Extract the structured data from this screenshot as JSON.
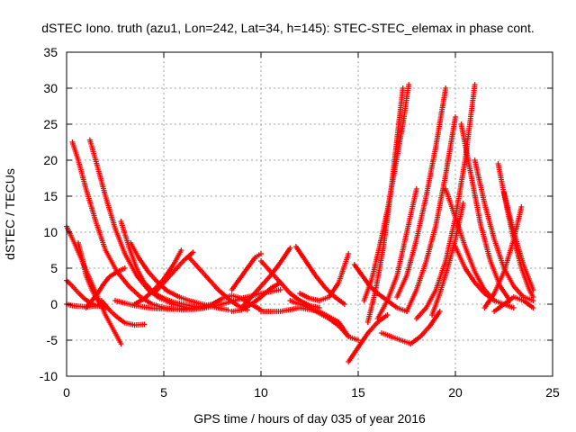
{
  "chart_data": {
    "type": "scatter",
    "title": "dSTEC Iono. truth (azu1, Lon=242, Lat=34, h=145): STEC-STEC_elemax in phase cont.",
    "xlabel": "GPS time / hours of day 035 of year 2016",
    "ylabel": "dSTEC  / TECUs",
    "xlim": [
      0,
      25
    ],
    "ylim": [
      -10,
      35
    ],
    "xticks": [
      0,
      5,
      10,
      15,
      20,
      25
    ],
    "yticks": [
      -10,
      -5,
      0,
      5,
      10,
      15,
      20,
      25,
      30,
      35
    ],
    "grid": true,
    "marker": "+",
    "color": "#ff0000",
    "series": [
      {
        "x": [
          0.0,
          0.4,
          0.8,
          1.2,
          1.6,
          2.0,
          2.4,
          2.8
        ],
        "y": [
          10.8,
          8.5,
          6.0,
          3.5,
          1.0,
          -1.5,
          -3.5,
          -5.5
        ]
      },
      {
        "x": [
          0.0,
          0.3,
          0.6,
          0.9,
          1.2,
          1.5,
          1.8
        ],
        "y": [
          3.3,
          2.5,
          1.6,
          0.8,
          0.2,
          -0.2,
          -0.3
        ]
      },
      {
        "x": [
          0.0,
          0.3,
          0.7,
          1.1,
          1.5,
          1.8
        ],
        "y": [
          0.0,
          -0.2,
          -0.3,
          -0.4,
          -0.2,
          0.0
        ]
      },
      {
        "x": [
          0.3,
          0.6,
          1.0,
          1.5,
          2.0,
          2.6,
          3.2,
          3.8,
          4.4,
          5.0
        ],
        "y": [
          22.5,
          20.0,
          16.0,
          11.5,
          7.5,
          4.5,
          2.5,
          1.0,
          0.0,
          -0.5
        ]
      },
      {
        "x": [
          1.2,
          1.6,
          2.0,
          2.5,
          3.0,
          3.6,
          4.2,
          4.8,
          5.5,
          6.2
        ],
        "y": [
          22.8,
          19.0,
          15.0,
          10.5,
          7.0,
          4.0,
          2.0,
          0.8,
          0.0,
          -0.5
        ]
      },
      {
        "x": [
          0.6,
          0.8,
          1.0,
          1.3,
          1.6,
          2.0
        ],
        "y": [
          8.5,
          6.5,
          4.0,
          2.0,
          0.5,
          -0.5
        ]
      },
      {
        "x": [
          1.0,
          1.3,
          1.6,
          1.9,
          2.2,
          2.6,
          3.0
        ],
        "y": [
          -0.5,
          0.5,
          1.5,
          2.8,
          3.8,
          4.5,
          5.0
        ]
      },
      {
        "x": [
          2.8,
          3.2,
          3.6,
          4.0,
          4.5,
          5.0,
          5.5,
          6.0,
          6.5,
          7.0
        ],
        "y": [
          11.5,
          8.0,
          5.0,
          3.0,
          1.5,
          0.8,
          0.3,
          0.0,
          -0.3,
          -0.5
        ]
      },
      {
        "x": [
          3.3,
          3.7,
          4.2,
          4.7,
          5.2,
          5.8,
          6.4,
          7.0,
          7.6,
          8.3
        ],
        "y": [
          8.5,
          6.5,
          4.5,
          3.0,
          1.8,
          1.0,
          0.4,
          0.0,
          -0.4,
          -0.8
        ]
      },
      {
        "x": [
          1.8,
          2.2,
          2.6,
          3.0,
          3.5,
          4.0
        ],
        "y": [
          0.5,
          -0.8,
          -1.8,
          -2.6,
          -2.9,
          -2.8
        ]
      },
      {
        "x": [
          3.5,
          4.0,
          4.5,
          5.0,
          5.5,
          5.9
        ],
        "y": [
          0.0,
          0.8,
          2.0,
          3.5,
          5.5,
          7.5
        ]
      },
      {
        "x": [
          2.5,
          3.5,
          4.5,
          5.5,
          6.5,
          7.5
        ],
        "y": [
          0.5,
          -0.2,
          -0.6,
          -0.7,
          -0.5,
          0.0
        ]
      },
      {
        "x": [
          4.5,
          5.0,
          5.5,
          6.0,
          6.5
        ],
        "y": [
          1.5,
          3.0,
          4.5,
          6.0,
          7.2
        ]
      },
      {
        "x": [
          6.3,
          6.8,
          7.3,
          7.8,
          8.3,
          8.8,
          9.3
        ],
        "y": [
          6.5,
          5.0,
          3.5,
          2.0,
          0.8,
          -0.2,
          -0.8
        ]
      },
      {
        "x": [
          5.0,
          6.0,
          7.0,
          8.0,
          9.0,
          10.0,
          11.0
        ],
        "y": [
          -0.5,
          -0.8,
          -0.6,
          0.0,
          0.8,
          1.5,
          2.0
        ]
      },
      {
        "x": [
          7.0,
          7.5,
          8.0,
          8.5,
          9.0,
          9.5,
          10.0
        ],
        "y": [
          -0.5,
          0.0,
          0.8,
          1.2,
          0.8,
          0.0,
          -0.8
        ]
      },
      {
        "x": [
          8.5,
          9.0,
          9.5,
          10.0,
          10.5,
          11.0
        ],
        "y": [
          -1.0,
          -0.8,
          0.0,
          1.0,
          2.2,
          3.0
        ]
      },
      {
        "x": [
          8.5,
          8.9,
          9.3,
          9.7,
          10.0
        ],
        "y": [
          2.0,
          3.5,
          5.0,
          6.5,
          7.0
        ]
      },
      {
        "x": [
          9.0,
          9.5,
          10.0,
          10.5,
          11.0,
          11.5
        ],
        "y": [
          -0.5,
          1.0,
          2.5,
          4.0,
          5.8,
          7.8
        ]
      },
      {
        "x": [
          10.0,
          10.5,
          11.0,
          11.5,
          12.0,
          12.5,
          13.0
        ],
        "y": [
          6.0,
          4.5,
          3.0,
          1.5,
          0.5,
          -0.2,
          -0.5
        ]
      },
      {
        "x": [
          11.8,
          12.3,
          12.8,
          13.3,
          13.8,
          14.3
        ],
        "y": [
          8.0,
          6.0,
          4.0,
          2.3,
          1.0,
          0.0
        ]
      },
      {
        "x": [
          10.0,
          11.0,
          12.0,
          13.0,
          14.0,
          14.5
        ],
        "y": [
          -1.0,
          -1.0,
          -0.5,
          -1.0,
          -2.5,
          -4.5
        ]
      },
      {
        "x": [
          12.0,
          12.5,
          13.0,
          13.5,
          14.0,
          14.5
        ],
        "y": [
          1.5,
          0.8,
          0.5,
          1.0,
          3.0,
          7.0
        ]
      },
      {
        "x": [
          11.5,
          12.5,
          13.5,
          14.0,
          14.5,
          15.0
        ],
        "y": [
          0.5,
          -0.5,
          -2.0,
          -3.0,
          -4.5,
          -5.0
        ]
      },
      {
        "x": [
          14.5,
          15.0,
          15.5,
          16.0,
          16.5
        ],
        "y": [
          -8.0,
          -6.0,
          -4.0,
          -2.5,
          -1.5
        ]
      },
      {
        "x": [
          14.8,
          15.2,
          15.6,
          16.0,
          16.5,
          17.0,
          17.5
        ],
        "y": [
          5.5,
          4.0,
          2.5,
          1.5,
          0.5,
          -0.5,
          -1.0
        ]
      },
      {
        "x": [
          15.5,
          15.9,
          16.3,
          16.7,
          17.0,
          17.3
        ],
        "y": [
          -2.5,
          2.0,
          8.0,
          16.0,
          23.0,
          30.0
        ]
      },
      {
        "x": [
          15.3,
          15.7,
          16.1,
          16.5,
          16.9,
          17.3,
          17.6
        ],
        "y": [
          0.5,
          3.5,
          8.0,
          13.0,
          19.0,
          25.0,
          30.5
        ]
      },
      {
        "x": [
          16.0,
          16.5,
          17.0,
          17.5,
          18.0
        ],
        "y": [
          -2.0,
          0.5,
          4.0,
          10.0,
          16.0
        ]
      },
      {
        "x": [
          16.2,
          16.7,
          17.2,
          17.7,
          18.2,
          18.7,
          19.2
        ],
        "y": [
          -4.0,
          -4.5,
          -5.0,
          -5.5,
          -4.5,
          -3.0,
          -1.0
        ]
      },
      {
        "x": [
          17.0,
          17.5,
          18.0,
          18.5,
          19.0,
          19.5
        ],
        "y": [
          1.0,
          4.0,
          9.0,
          15.0,
          22.0,
          30.0
        ]
      },
      {
        "x": [
          17.5,
          18.0,
          18.5,
          19.0,
          19.5,
          20.0
        ],
        "y": [
          -1.0,
          2.0,
          6.0,
          11.0,
          18.0,
          26.0
        ]
      },
      {
        "x": [
          18.0,
          18.5,
          19.0,
          19.5,
          20.0,
          20.5,
          21.0
        ],
        "y": [
          -2.0,
          -0.5,
          2.0,
          6.0,
          12.0,
          20.0,
          30.5
        ]
      },
      {
        "x": [
          19.5,
          20.0,
          20.5,
          21.0,
          21.5,
          22.0
        ],
        "y": [
          16.0,
          12.0,
          8.0,
          4.5,
          2.0,
          0.5
        ]
      },
      {
        "x": [
          20.3,
          20.8,
          21.3,
          21.8,
          22.3,
          22.8
        ],
        "y": [
          25.0,
          18.0,
          11.0,
          6.0,
          2.5,
          0.5
        ]
      },
      {
        "x": [
          20.0,
          20.5,
          21.0,
          21.5,
          22.0,
          22.5,
          23.0
        ],
        "y": [
          8.0,
          5.0,
          3.0,
          1.5,
          0.5,
          0.0,
          -0.5
        ]
      },
      {
        "x": [
          21.0,
          21.5,
          22.0,
          22.5,
          23.0,
          23.5,
          24.0
        ],
        "y": [
          20.0,
          14.0,
          9.0,
          5.0,
          2.5,
          1.0,
          0.5
        ]
      },
      {
        "x": [
          22.2,
          22.6,
          23.0,
          23.4,
          23.8,
          24.0
        ],
        "y": [
          19.5,
          14.0,
          9.0,
          5.0,
          2.0,
          1.0
        ]
      },
      {
        "x": [
          22.5,
          23.0,
          23.5,
          24.0
        ],
        "y": [
          15.5,
          10.0,
          5.5,
          2.0
        ]
      },
      {
        "x": [
          21.5,
          22.0,
          22.5,
          23.0,
          23.4
        ],
        "y": [
          -0.5,
          1.5,
          4.5,
          9.0,
          13.5
        ]
      },
      {
        "x": [
          22.0,
          22.5,
          23.0,
          23.5,
          24.0
        ],
        "y": [
          -1.0,
          0.0,
          1.0,
          0.5,
          -0.5
        ]
      },
      {
        "x": [
          18.8,
          19.2,
          19.6,
          20.0,
          20.4
        ],
        "y": [
          -1.5,
          1.5,
          5.0,
          9.0,
          14.0
        ]
      }
    ]
  }
}
